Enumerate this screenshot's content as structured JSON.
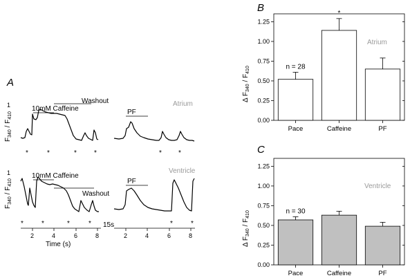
{
  "panel_labels": {
    "a": "A",
    "b": "B",
    "c": "C"
  },
  "panel_a": {
    "ylabel_main": "F",
    "ylabel_sub1": "340",
    "ylabel_sep": " / F",
    "ylabel_sub2": "410",
    "ytick": "1",
    "xlabel": "Time (s)",
    "xticks_left": [
      "2",
      "4",
      "6",
      "8"
    ],
    "xticks_right": [
      "2",
      "4",
      "6",
      "8"
    ],
    "break_label": "15s",
    "annotations": {
      "caffeine": "10mM Caffeine",
      "washout": "Washout",
      "pf": "PF",
      "stim": "*"
    },
    "rows": [
      {
        "name": "Atrium",
        "label_color": "#9a9a9a"
      },
      {
        "name": "Ventricle",
        "label_color": "#9a9a9a"
      }
    ]
  },
  "chart_data": [
    {
      "panel": "B",
      "type": "bar",
      "categories": [
        "Pace",
        "Caffeine",
        "PF"
      ],
      "values": [
        0.52,
        1.14,
        0.65
      ],
      "errors": [
        0.09,
        0.15,
        0.14
      ],
      "annotations": [
        {
          "category": "Pace",
          "text": "n = 28"
        },
        {
          "category": "Caffeine",
          "text": "*"
        }
      ],
      "legend": "Atrium",
      "ylabel_main": "Δ F",
      "ylabel_sub1": "340",
      "ylabel_sep": " / F",
      "ylabel_sub2": "410",
      "ylim": [
        0,
        1.35
      ],
      "yticks": [
        "0.00",
        "0.25",
        "0.50",
        "0.75",
        "1.00",
        "1.25"
      ],
      "bar_fill": "#ffffff",
      "bar_stroke": "#000000"
    },
    {
      "panel": "C",
      "type": "bar",
      "categories": [
        "Pace",
        "Caffeine",
        "PF"
      ],
      "values": [
        0.57,
        0.63,
        0.49
      ],
      "errors": [
        0.04,
        0.05,
        0.05
      ],
      "annotations": [
        {
          "category": "Pace",
          "text": "n = 30"
        }
      ],
      "legend": "Ventricle",
      "ylabel_main": "Δ F",
      "ylabel_sub1": "340",
      "ylabel_sep": " / F",
      "ylabel_sub2": "410",
      "ylim": [
        0,
        1.35
      ],
      "yticks": [
        "0.00",
        "0.25",
        "0.50",
        "0.75",
        "1.00",
        "1.25"
      ],
      "bar_fill": "#c0c0c0",
      "bar_stroke": "#000000"
    }
  ]
}
